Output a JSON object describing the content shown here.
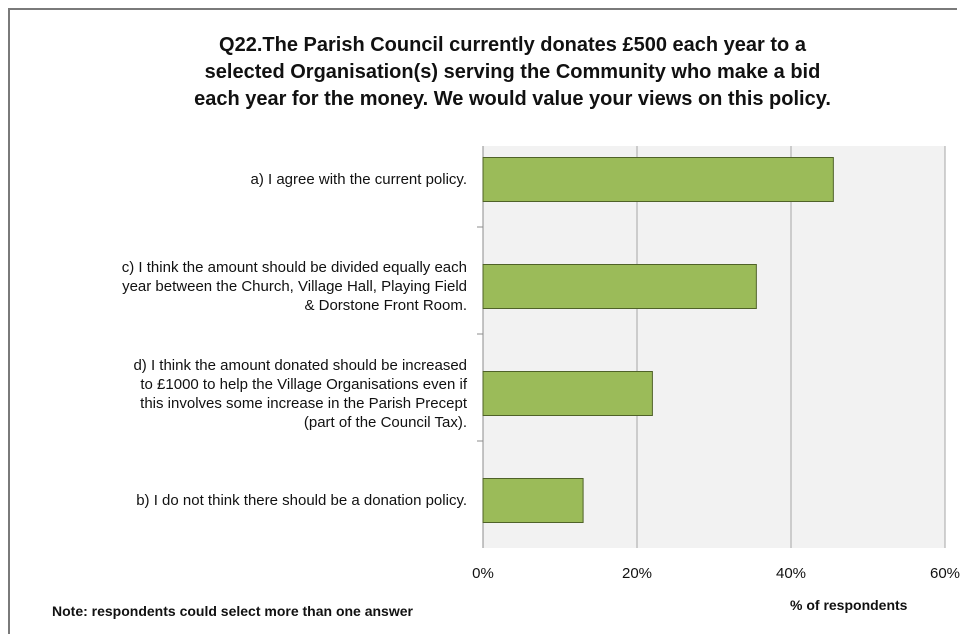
{
  "chart_data": {
    "type": "bar",
    "orientation": "horizontal",
    "title_lines": [
      "Q22.The Parish Council currently donates £500 each year to a",
      "selected Organisation(s) serving the Community who make a bid",
      "each year for the money. We would value your views on this policy."
    ],
    "categories": [
      [
        "a) I agree with the current policy."
      ],
      [
        "c) I think the amount should be divided equally each",
        "year between the Church, Village Hall, Playing Field",
        "& Dorstone Front Room."
      ],
      [
        "d) I think the amount donated should be increased",
        "to £1000 to help the Village Organisations even if",
        "this involves some increase in the Parish Precept",
        "(part of the Council Tax)."
      ],
      [
        "b) I do not think there should be a donation policy."
      ]
    ],
    "values": [
      45.5,
      35.5,
      22,
      13
    ],
    "xlim": [
      0,
      60
    ],
    "xticks": [
      "0%",
      "20%",
      "40%",
      "60%"
    ],
    "xlabel": "% of respondents",
    "ylabel": "",
    "grid": true,
    "legend": "none",
    "colors": {
      "bar_fill": "#9bbb59",
      "bar_stroke": "#4f6228",
      "plot_bg": "#f2f2f2",
      "grid": "#a6a6a6"
    }
  },
  "note": "Note: respondents could select more than one answer"
}
